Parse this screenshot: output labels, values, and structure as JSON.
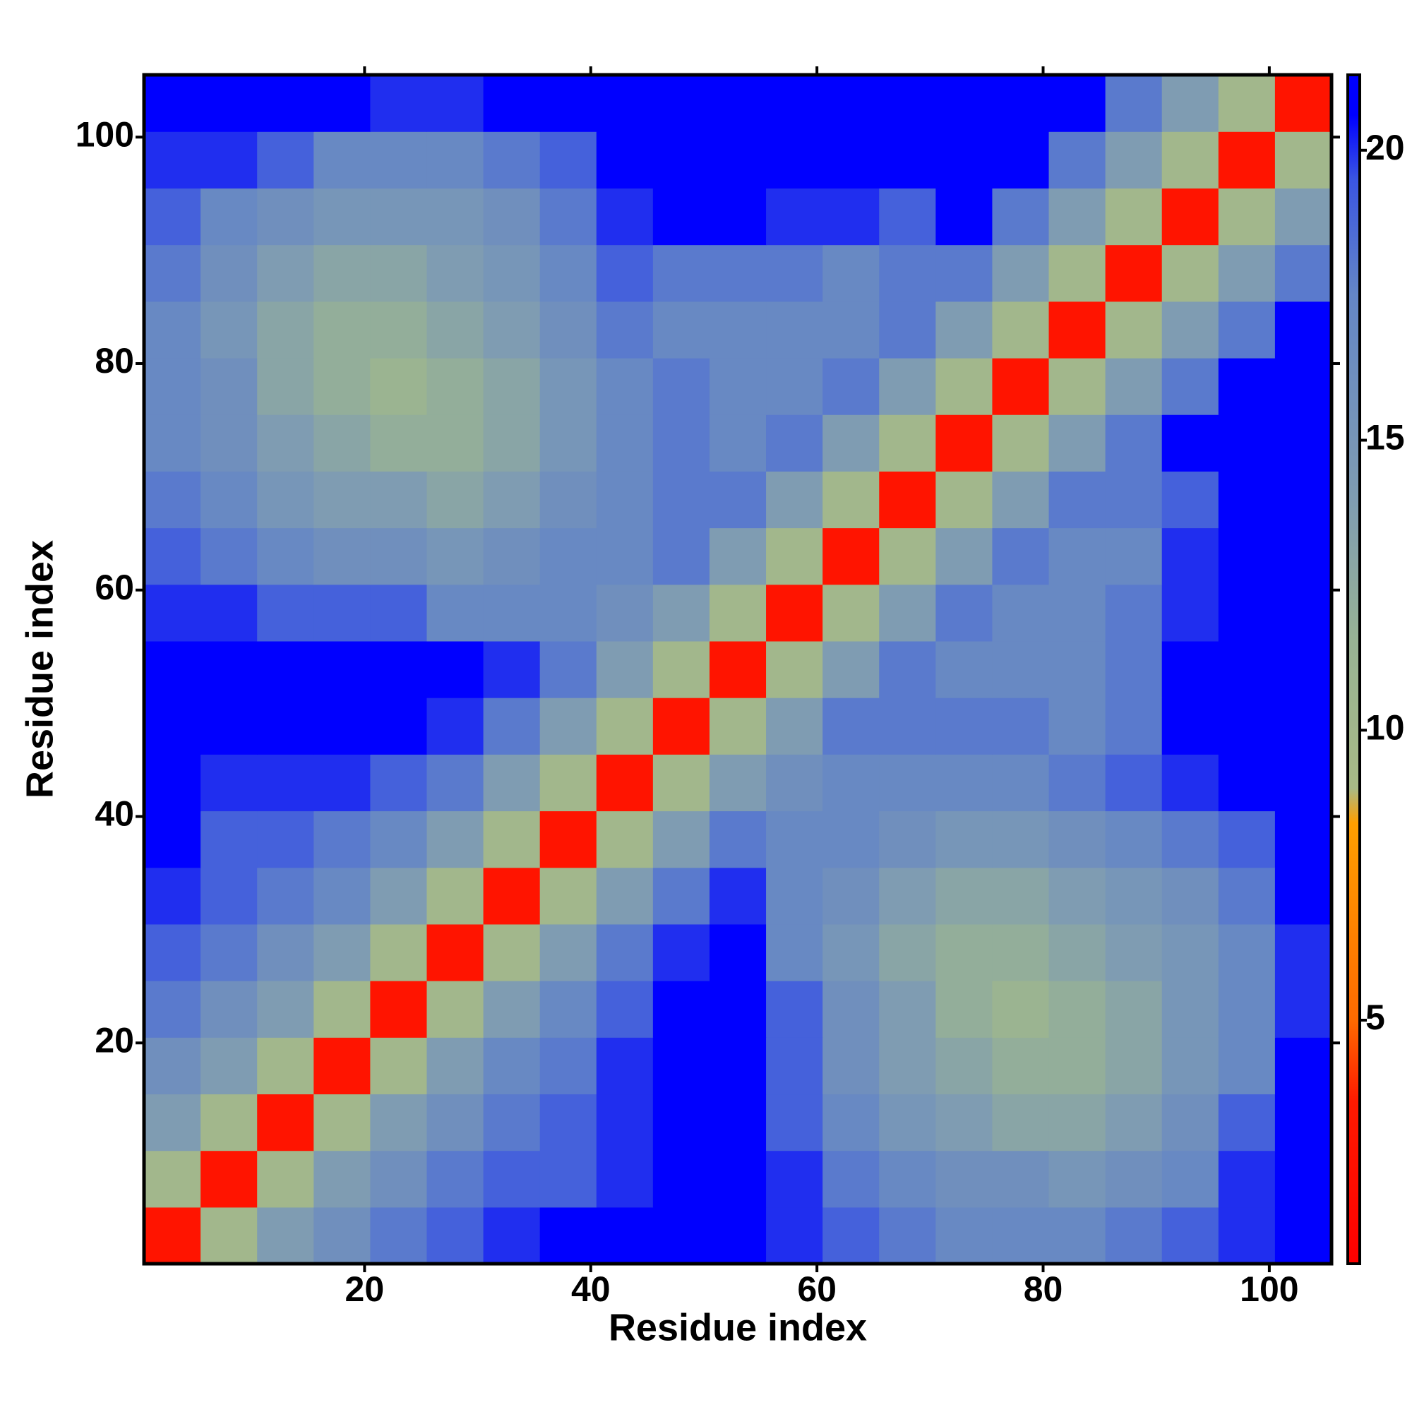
{
  "chart_data": {
    "type": "heatmap",
    "x_label": "Residue index",
    "y_label": "Residue index",
    "x": [
      3,
      8,
      13,
      18,
      23,
      28,
      33,
      38,
      43,
      48,
      53,
      58,
      63,
      68,
      73,
      78,
      83,
      88,
      93,
      98,
      103
    ],
    "y": [
      3,
      8,
      13,
      18,
      23,
      28,
      33,
      38,
      43,
      48,
      53,
      58,
      63,
      68,
      73,
      78,
      83,
      88,
      93,
      98,
      103
    ],
    "z": [
      [
        3,
        10,
        14,
        16,
        18,
        19,
        20,
        21,
        21,
        21,
        21,
        20,
        19,
        18,
        17,
        17,
        17,
        18,
        19,
        20,
        21
      ],
      [
        10,
        3,
        10,
        14,
        16,
        18,
        19,
        19,
        20,
        21,
        21,
        20,
        18,
        17,
        16,
        16,
        15,
        16,
        17,
        20,
        21
      ],
      [
        14,
        10,
        3,
        10,
        14,
        16,
        18,
        19,
        20,
        21,
        21,
        19,
        17,
        15,
        14,
        13,
        13,
        14,
        16,
        19,
        21
      ],
      [
        16,
        14,
        10,
        3,
        10,
        14,
        17,
        18,
        20,
        21,
        21,
        19,
        16,
        14,
        13,
        12,
        12,
        13,
        15,
        17,
        21
      ],
      [
        18,
        16,
        14,
        10,
        3,
        10,
        14,
        17,
        19,
        21,
        21,
        19,
        16,
        14,
        12,
        11,
        12,
        13,
        15,
        17,
        20
      ],
      [
        19,
        18,
        16,
        14,
        10,
        3,
        10,
        14,
        18,
        20,
        21,
        17,
        15,
        13,
        12,
        12,
        13,
        14,
        15,
        17,
        20
      ],
      [
        20,
        19,
        18,
        17,
        14,
        10,
        3,
        10,
        14,
        18,
        20,
        17,
        16,
        14,
        13,
        13,
        14,
        15,
        16,
        18,
        21
      ],
      [
        21,
        19,
        19,
        18,
        17,
        14,
        10,
        3,
        10,
        14,
        18,
        17,
        17,
        16,
        15,
        15,
        16,
        17,
        18,
        19,
        21
      ],
      [
        21,
        20,
        20,
        20,
        19,
        18,
        14,
        10,
        3,
        10,
        14,
        16,
        17,
        17,
        17,
        17,
        18,
        19,
        20,
        21,
        21
      ],
      [
        21,
        21,
        21,
        21,
        21,
        20,
        18,
        14,
        10,
        3,
        10,
        14,
        18,
        18,
        18,
        18,
        17,
        18,
        21,
        21,
        21
      ],
      [
        21,
        21,
        21,
        21,
        21,
        21,
        20,
        18,
        14,
        10,
        3,
        10,
        14,
        18,
        17,
        17,
        17,
        18,
        21,
        21,
        21
      ],
      [
        20,
        20,
        19,
        19,
        19,
        17,
        17,
        17,
        16,
        14,
        10,
        3,
        10,
        14,
        18,
        17,
        17,
        18,
        20,
        21,
        21
      ],
      [
        19,
        18,
        17,
        16,
        16,
        15,
        16,
        17,
        17,
        18,
        14,
        10,
        3,
        10,
        14,
        18,
        17,
        17,
        20,
        21,
        21
      ],
      [
        18,
        17,
        15,
        14,
        14,
        13,
        14,
        16,
        17,
        18,
        18,
        14,
        10,
        3,
        10,
        14,
        18,
        18,
        19,
        21,
        21
      ],
      [
        17,
        16,
        14,
        13,
        12,
        12,
        13,
        15,
        17,
        18,
        17,
        18,
        14,
        10,
        3,
        10,
        14,
        18,
        21,
        21,
        21
      ],
      [
        17,
        16,
        13,
        12,
        11,
        12,
        13,
        15,
        17,
        18,
        17,
        17,
        18,
        14,
        10,
        3,
        10,
        14,
        18,
        21,
        21
      ],
      [
        17,
        15,
        13,
        12,
        12,
        13,
        14,
        16,
        18,
        17,
        17,
        17,
        17,
        18,
        14,
        10,
        3,
        10,
        14,
        18,
        21
      ],
      [
        18,
        16,
        14,
        13,
        13,
        14,
        15,
        17,
        19,
        18,
        18,
        18,
        17,
        18,
        18,
        14,
        10,
        3,
        10,
        14,
        18
      ],
      [
        19,
        17,
        16,
        15,
        15,
        15,
        16,
        18,
        20,
        21,
        21,
        20,
        20,
        19,
        21,
        18,
        14,
        10,
        3,
        10,
        14
      ],
      [
        20,
        20,
        19,
        17,
        17,
        17,
        18,
        19,
        21,
        21,
        21,
        21,
        21,
        21,
        21,
        21,
        18,
        14,
        10,
        3,
        10
      ],
      [
        21,
        21,
        21,
        21,
        20,
        20,
        21,
        21,
        21,
        21,
        21,
        21,
        21,
        21,
        21,
        21,
        21,
        18,
        14,
        10,
        3
      ]
    ],
    "xlim": [
      0.5,
      105.5
    ],
    "ylim": [
      0.5,
      105.5
    ],
    "xticks": [
      20,
      40,
      60,
      80,
      100
    ],
    "yticks": [
      20,
      40,
      60,
      80,
      100
    ],
    "zlim": [
      0.8,
      21.3
    ],
    "zticks": [
      5,
      10,
      15,
      20
    ],
    "colorscale": [
      {
        "value": 0.8,
        "color": "#ff0000"
      },
      {
        "value": 3.6,
        "color": "#ff1a00"
      },
      {
        "value": 5,
        "color": "#ff6a00"
      },
      {
        "value": 8.4,
        "color": "#ff9f00"
      },
      {
        "value": 9,
        "color": "#a8ba86"
      },
      {
        "value": 11.5,
        "color": "#98b294"
      },
      {
        "value": 14,
        "color": "#7f9cb2"
      },
      {
        "value": 17.5,
        "color": "#6486c6"
      },
      {
        "value": 19.5,
        "color": "#3a55e2"
      },
      {
        "value": 20.6,
        "color": "#0000ff"
      },
      {
        "value": 21.3,
        "color": "#0000ff"
      }
    ]
  }
}
